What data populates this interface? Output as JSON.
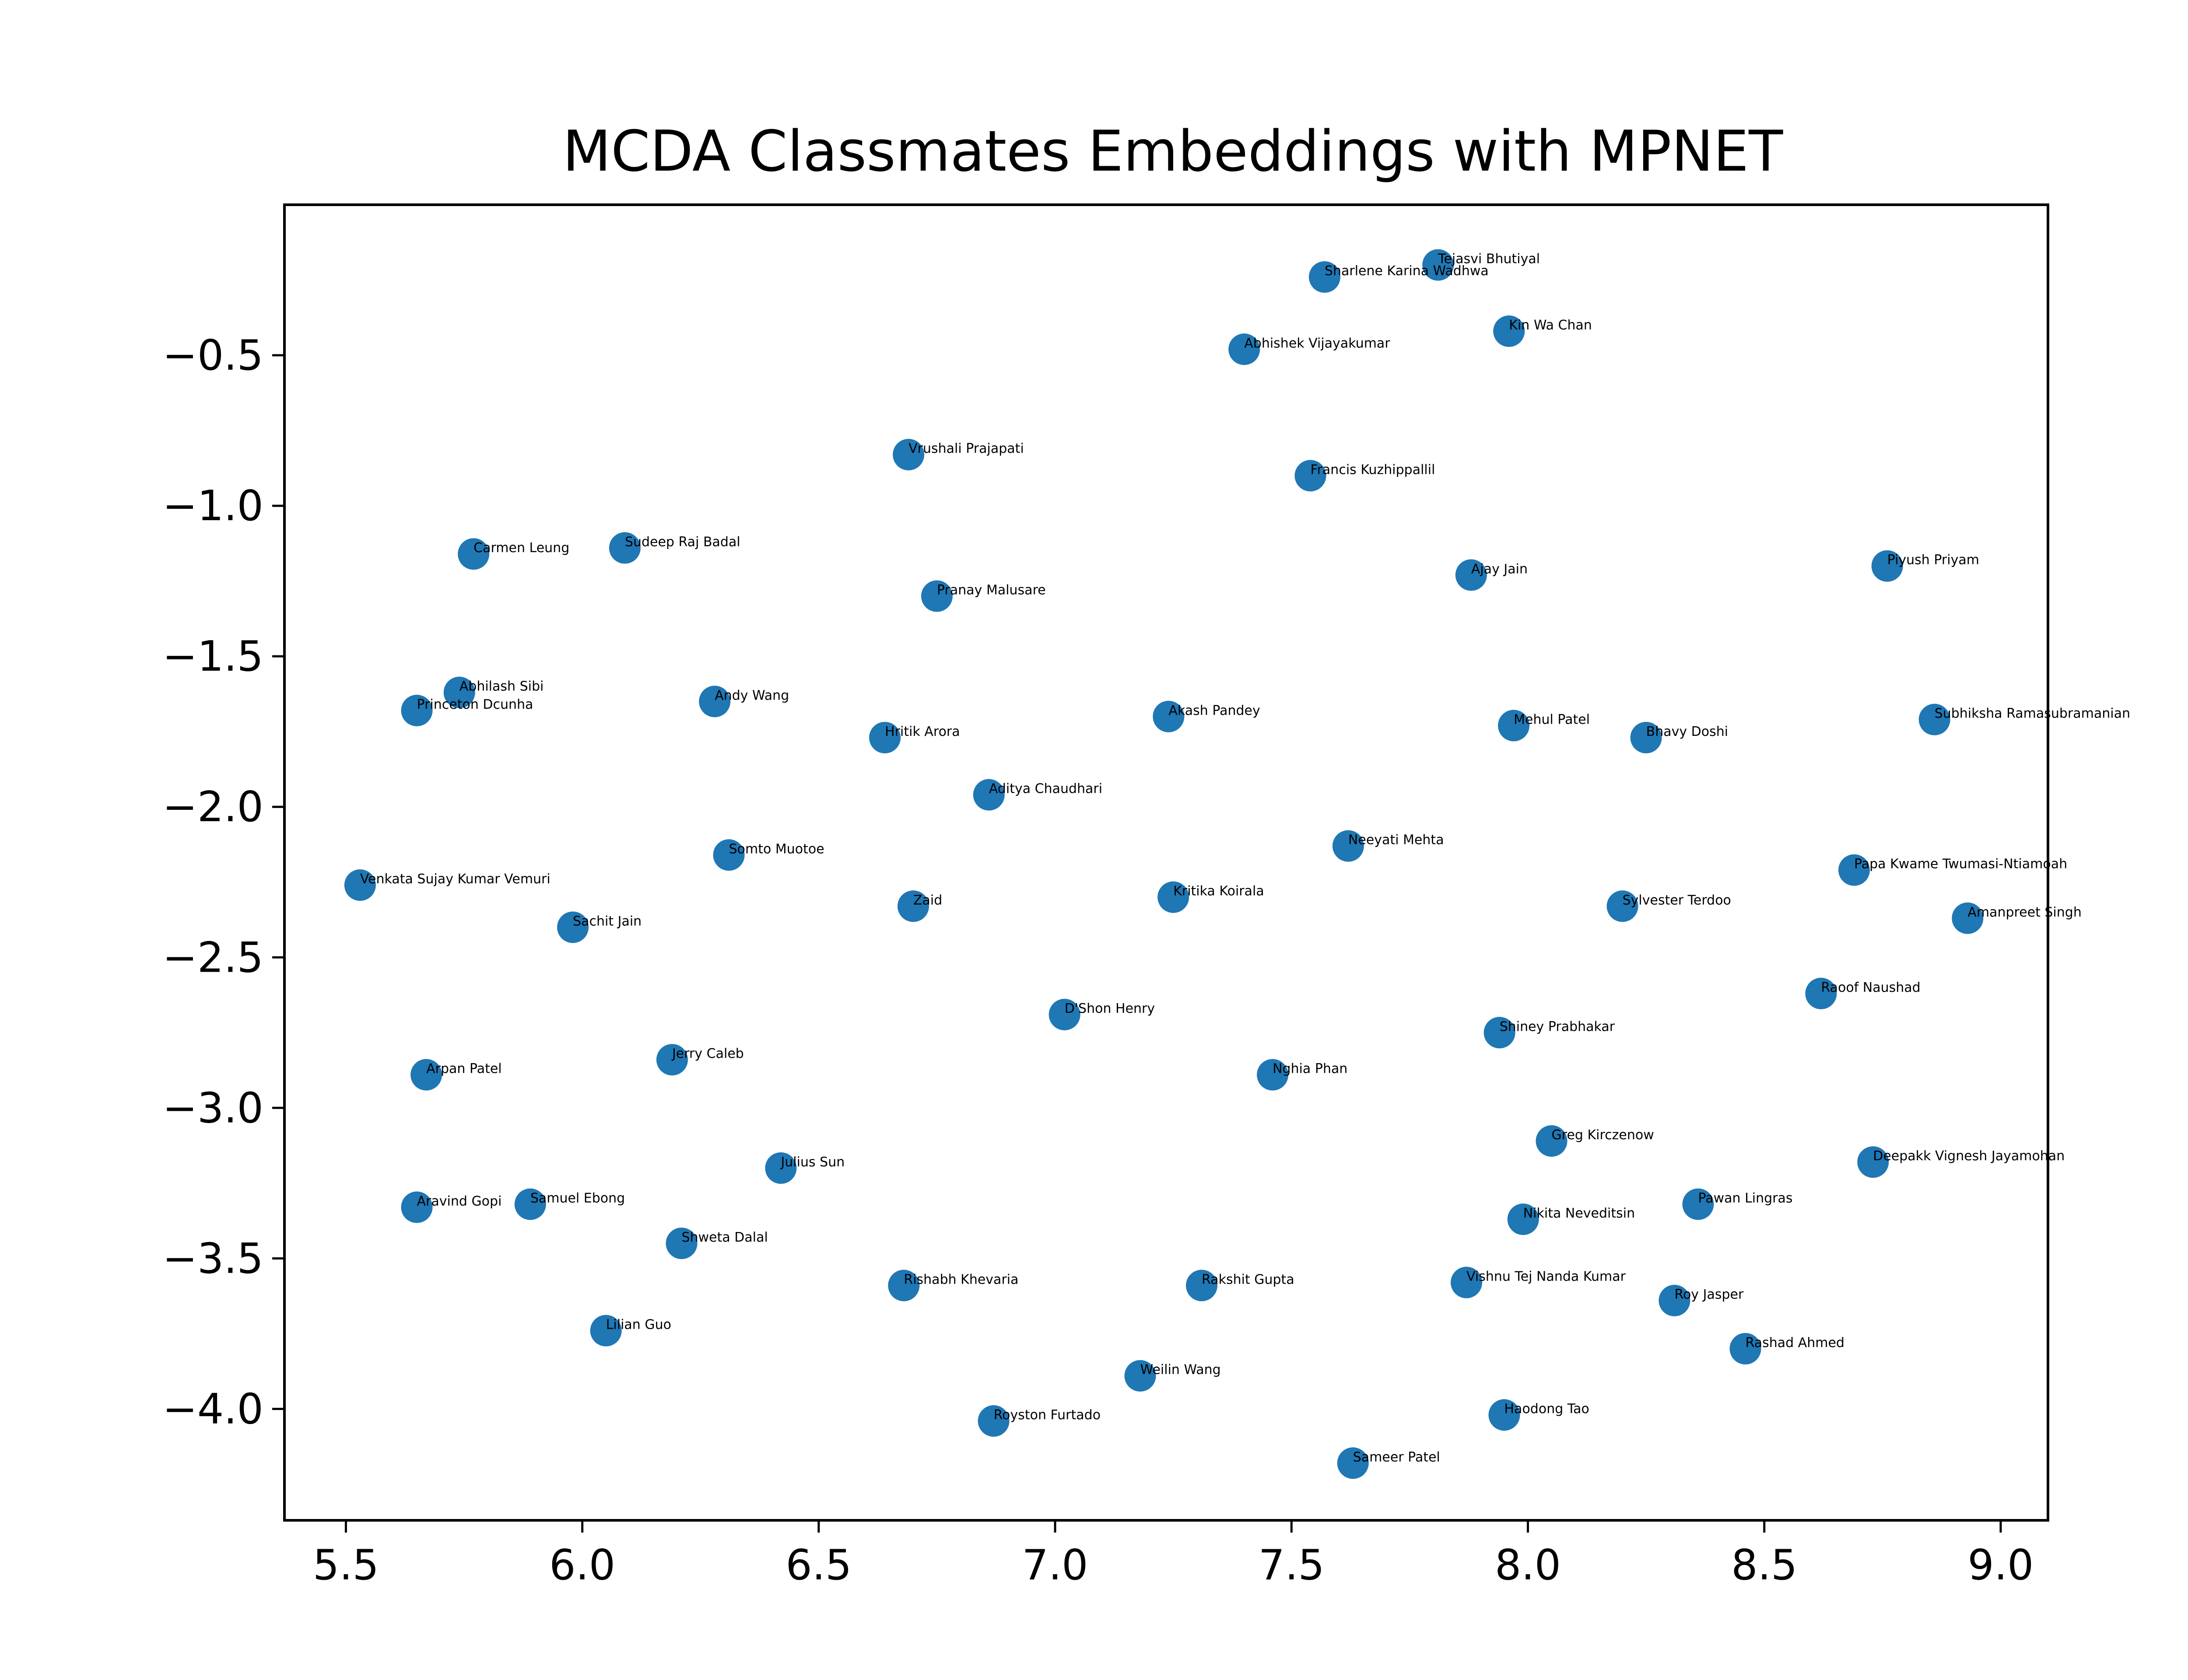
{
  "chart_data": {
    "type": "scatter",
    "title": "MCDA Classmates Embeddings with MPNET",
    "xlabel": "",
    "ylabel": "",
    "xlim": [
      5.37,
      9.1
    ],
    "ylim": [
      -4.37,
      -0.0
    ],
    "xticks": [
      5.5,
      6.0,
      6.5,
      7.0,
      7.5,
      8.0,
      8.5,
      9.0
    ],
    "xtick_labels": [
      "5.5",
      "6.0",
      "6.5",
      "7.0",
      "7.5",
      "8.0",
      "8.5",
      "9.0"
    ],
    "yticks": [
      -0.5,
      -1.0,
      -1.5,
      -2.0,
      -2.5,
      -3.0,
      -3.5,
      -4.0
    ],
    "ytick_labels": [
      "−0.5",
      "−1.0",
      "−1.5",
      "−2.0",
      "−2.5",
      "−3.0",
      "−3.5",
      "−4.0"
    ],
    "grid": false,
    "marker_color": "#1f77b4",
    "points": [
      {
        "label": "Tejasvi Bhutiyal",
        "x": 7.81,
        "y": -0.2
      },
      {
        "label": "Sharlene Karina Wadhwa",
        "x": 7.57,
        "y": -0.24
      },
      {
        "label": "Kin Wa Chan",
        "x": 7.96,
        "y": -0.42
      },
      {
        "label": "Abhishek Vijayakumar",
        "x": 7.4,
        "y": -0.48
      },
      {
        "label": "Vrushali Prajapati",
        "x": 6.69,
        "y": -0.83
      },
      {
        "label": "Francis Kuzhippallil",
        "x": 7.54,
        "y": -0.9
      },
      {
        "label": "Carmen Leung",
        "x": 5.77,
        "y": -1.16
      },
      {
        "label": "Sudeep Raj Badal",
        "x": 6.09,
        "y": -1.14
      },
      {
        "label": "Pranay Malusare",
        "x": 6.75,
        "y": -1.3
      },
      {
        "label": "Ajay Jain",
        "x": 7.88,
        "y": -1.23
      },
      {
        "label": "Piyush Priyam",
        "x": 8.76,
        "y": -1.2
      },
      {
        "label": "Abhilash Sibi",
        "x": 5.74,
        "y": -1.62
      },
      {
        "label": "Princeton Dcunha",
        "x": 5.65,
        "y": -1.68
      },
      {
        "label": "Andy Wang",
        "x": 6.28,
        "y": -1.65
      },
      {
        "label": "Hritik Arora",
        "x": 6.64,
        "y": -1.77
      },
      {
        "label": "Akash Pandey",
        "x": 7.24,
        "y": -1.7
      },
      {
        "label": "Mehul Patel",
        "x": 7.97,
        "y": -1.73
      },
      {
        "label": "Bhavy Doshi",
        "x": 8.25,
        "y": -1.77
      },
      {
        "label": "Subhiksha Ramasubramanian",
        "x": 8.86,
        "y": -1.71
      },
      {
        "label": "Aditya Chaudhari",
        "x": 6.86,
        "y": -1.96
      },
      {
        "label": "Neeyati Mehta",
        "x": 7.62,
        "y": -2.13
      },
      {
        "label": "Somto Muotoe",
        "x": 6.31,
        "y": -2.16
      },
      {
        "label": "Venkata Sujay Kumar Vemuri",
        "x": 5.53,
        "y": -2.26
      },
      {
        "label": "Zaid",
        "x": 6.7,
        "y": -2.33
      },
      {
        "label": "Kritika Koirala",
        "x": 7.25,
        "y": -2.3
      },
      {
        "label": "Sylvester Terdoo",
        "x": 8.2,
        "y": -2.33
      },
      {
        "label": "Papa Kwame Twumasi-Ntiamoah",
        "x": 8.69,
        "y": -2.21
      },
      {
        "label": "Amanpreet Singh",
        "x": 8.93,
        "y": -2.37
      },
      {
        "label": "Sachit Jain",
        "x": 5.98,
        "y": -2.4
      },
      {
        "label": "Raoof Naushad",
        "x": 8.62,
        "y": -2.62
      },
      {
        "label": "D'Shon Henry",
        "x": 7.02,
        "y": -2.69
      },
      {
        "label": "Shiney Prabhakar",
        "x": 7.94,
        "y": -2.75
      },
      {
        "label": "Jerry Caleb",
        "x": 6.19,
        "y": -2.84
      },
      {
        "label": "Arpan Patel",
        "x": 5.67,
        "y": -2.89
      },
      {
        "label": "Nghia Phan",
        "x": 7.46,
        "y": -2.89
      },
      {
        "label": "Greg Kirczenow",
        "x": 8.05,
        "y": -3.11
      },
      {
        "label": "Deepakk Vignesh Jayamohan",
        "x": 8.73,
        "y": -3.18
      },
      {
        "label": "Julius Sun",
        "x": 6.42,
        "y": -3.2
      },
      {
        "label": "Aravind Gopi",
        "x": 5.65,
        "y": -3.33
      },
      {
        "label": "Samuel Ebong",
        "x": 5.89,
        "y": -3.32
      },
      {
        "label": "Pawan Lingras",
        "x": 8.36,
        "y": -3.32
      },
      {
        "label": "Nikita Neveditsin",
        "x": 7.99,
        "y": -3.37
      },
      {
        "label": "Shweta Dalal",
        "x": 6.21,
        "y": -3.45
      },
      {
        "label": "Rishabh Khevaria",
        "x": 6.68,
        "y": -3.59
      },
      {
        "label": "Rakshit Gupta",
        "x": 7.31,
        "y": -3.59
      },
      {
        "label": "Vishnu Tej Nanda Kumar",
        "x": 7.87,
        "y": -3.58
      },
      {
        "label": "Roy Jasper",
        "x": 8.31,
        "y": -3.64
      },
      {
        "label": "Lilian Guo",
        "x": 6.05,
        "y": -3.74
      },
      {
        "label": "Rashad Ahmed",
        "x": 8.46,
        "y": -3.8
      },
      {
        "label": "Weilin Wang",
        "x": 7.18,
        "y": -3.89
      },
      {
        "label": "Royston Furtado",
        "x": 6.87,
        "y": -4.04
      },
      {
        "label": "Haodong Tao",
        "x": 7.95,
        "y": -4.02
      },
      {
        "label": "Sameer Patel",
        "x": 7.63,
        "y": -4.18
      }
    ]
  }
}
